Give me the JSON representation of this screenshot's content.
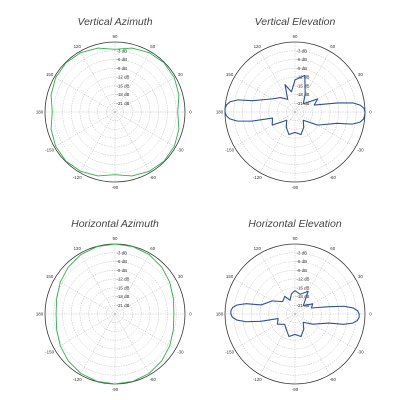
{
  "colors": {
    "azimuth_trace": "#2db34a",
    "elevation_trace": "#2e4f9e",
    "grid": "#b0b0b0",
    "outer_ring": "#333333",
    "text": "#333333"
  },
  "chart_data": [
    {
      "type": "polar",
      "title": "Vertical Azimuth",
      "angle_labels": [
        "90",
        "60",
        "30",
        "0",
        "-30",
        "-60",
        "-90",
        "-120",
        "-150",
        "180",
        "150",
        "120"
      ],
      "radial_labels": [
        "-3 dB",
        "-6 dB",
        "-9 dB",
        "-12 dB",
        "-15 dB",
        "-18 dB",
        "-21 dB"
      ],
      "radial_range_db": [
        -24,
        0
      ],
      "grid": true,
      "series": [
        {
          "angles_deg": [
            0,
            15,
            30,
            45,
            60,
            75,
            90,
            105,
            120,
            135,
            150,
            165,
            180,
            195,
            210,
            225,
            240,
            255,
            270,
            285,
            300,
            315,
            330,
            345
          ],
          "values_db": [
            -2.5,
            -1.3,
            -0.5,
            -0.2,
            -0.5,
            -1.3,
            -2.5,
            -1.3,
            -0.5,
            -0.2,
            -0.5,
            -1.3,
            -2.5,
            -1.3,
            -0.5,
            -0.2,
            -0.5,
            -1.3,
            -2.5,
            -1.3,
            -0.5,
            -0.2,
            -0.5,
            -1.3
          ]
        }
      ]
    },
    {
      "type": "polar",
      "title": "Vertical Elevation",
      "angle_labels": [
        "90",
        "60",
        "30",
        "0",
        "-30",
        "-60",
        "-90",
        "-120",
        "-150",
        "180",
        "150",
        "120"
      ],
      "radial_labels": [
        "-3 dB",
        "-6 dB",
        "-9 dB",
        "-12 dB",
        "-15 dB",
        "-18 dB",
        "-21 dB"
      ],
      "radial_range_db": [
        -24,
        0
      ],
      "grid": true,
      "series": [
        {
          "angles_deg": [
            0,
            3,
            6,
            9,
            12,
            20,
            30,
            45,
            60,
            75,
            90,
            100,
            110,
            120,
            135,
            150,
            165,
            168,
            171,
            174,
            177,
            180,
            183,
            186,
            189,
            192,
            195,
            210,
            225,
            240,
            255,
            270,
            285,
            300,
            315,
            330,
            345,
            348,
            351,
            354,
            357
          ],
          "values_db": [
            0,
            -0.3,
            -1.5,
            -4,
            -9,
            -17,
            -15,
            -20,
            -17,
            -11,
            -13,
            -17,
            -14,
            -19,
            -17,
            -15,
            -9,
            -4,
            -1.5,
            -0.4,
            0,
            0,
            -0.4,
            -1.5,
            -4,
            -9,
            -16,
            -15,
            -20,
            -18,
            -16,
            -17,
            -16,
            -18,
            -20,
            -15,
            -9,
            -4,
            -1.5,
            -0.4,
            -0.1
          ]
        }
      ]
    },
    {
      "type": "polar",
      "title": "Horizontal Azimuth",
      "angle_labels": [
        "90",
        "60",
        "30",
        "0",
        "-30",
        "-60",
        "-90",
        "-120",
        "-150",
        "180",
        "150",
        "120"
      ],
      "radial_labels": [
        "-3 dB",
        "-6 dB",
        "-9 dB",
        "-12 dB",
        "-15 dB",
        "-18 dB",
        "-21 dB"
      ],
      "radial_range_db": [
        -24,
        0
      ],
      "grid": true,
      "series": [
        {
          "angles_deg": [
            0,
            15,
            30,
            45,
            60,
            75,
            90,
            105,
            120,
            135,
            150,
            165,
            180,
            195,
            210,
            225,
            240,
            255,
            270,
            285,
            300,
            315,
            330,
            345
          ],
          "values_db": [
            -3.8,
            -3.3,
            -2.3,
            -1.3,
            -0.5,
            -0.1,
            0,
            -0.1,
            -0.5,
            -1.3,
            -2.3,
            -3.3,
            -3.8,
            -3.3,
            -2.3,
            -1.3,
            -0.5,
            -0.1,
            0,
            -0.1,
            -0.5,
            -1.3,
            -2.3,
            -3.3
          ]
        }
      ]
    },
    {
      "type": "polar",
      "title": "Horizontal Elevation",
      "angle_labels": [
        "90",
        "60",
        "30",
        "0",
        "-30",
        "-60",
        "-90",
        "-120",
        "-150",
        "180",
        "150",
        "120"
      ],
      "radial_labels": [
        "-3 dB",
        "-6 dB",
        "-9 dB",
        "-12 dB",
        "-15 dB",
        "-18 dB",
        "-21 dB"
      ],
      "radial_range_db": [
        -24,
        0
      ],
      "grid": true,
      "series": [
        {
          "angles_deg": [
            0,
            3,
            6,
            9,
            12,
            20,
            30,
            45,
            60,
            75,
            90,
            100,
            110,
            120,
            135,
            150,
            165,
            168,
            171,
            174,
            177,
            180,
            183,
            186,
            189,
            192,
            195,
            210,
            225,
            240,
            255,
            270,
            285,
            300,
            315,
            330,
            345,
            348,
            351,
            354,
            357
          ],
          "values_db": [
            -2,
            -2.5,
            -4,
            -7,
            -12,
            -18,
            -17,
            -20,
            -15,
            -17,
            -16,
            -17,
            -19,
            -17,
            -18,
            -15,
            -12,
            -7,
            -4,
            -2.5,
            -2,
            -2,
            -2.5,
            -4,
            -7,
            -12,
            -18,
            -17,
            -19,
            -18,
            -16,
            -17,
            -16,
            -18,
            -20,
            -17,
            -12,
            -7,
            -4,
            -2.5,
            -2
          ]
        }
      ]
    }
  ]
}
